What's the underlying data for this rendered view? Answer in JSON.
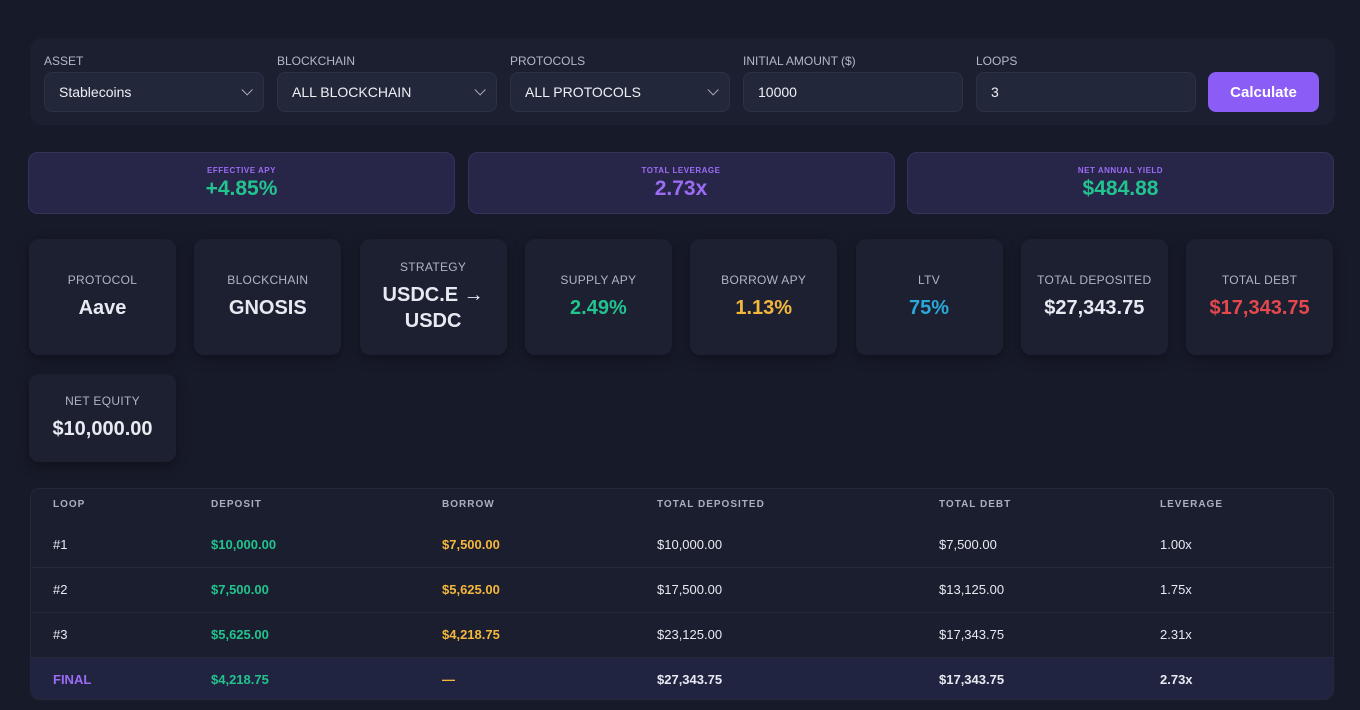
{
  "form": {
    "fields": [
      {
        "label": "ASSET",
        "value": "Stablecoins"
      },
      {
        "label": "BLOCKCHAIN",
        "value": "ALL BLOCKCHAIN"
      },
      {
        "label": "PROTOCOLS",
        "value": "ALL PROTOCOLS"
      },
      {
        "label": "INITIAL AMOUNT ($)",
        "value": "10000"
      },
      {
        "label": "LOOPS",
        "value": "3"
      }
    ],
    "button": "Calculate"
  },
  "summary": [
    {
      "label": "EFFECTIVE APY",
      "value": "+4.85%"
    },
    {
      "label": "TOTAL LEVERAGE",
      "value": "2.73x"
    },
    {
      "label": "NET ANNUAL YIELD",
      "value": "$484.88"
    }
  ],
  "stats": [
    {
      "label": "PROTOCOL",
      "value": "Aave"
    },
    {
      "label": "BLOCKCHAIN",
      "value": "GNOSIS"
    },
    {
      "label": "STRATEGY",
      "value": "USDC.E → USDC"
    },
    {
      "label": "SUPPLY APY",
      "value": "2.49%"
    },
    {
      "label": "BORROW APY",
      "value": "1.13%"
    },
    {
      "label": "LTV",
      "value": "75%"
    },
    {
      "label": "TOTAL DEPOSITED",
      "value": "$27,343.75"
    },
    {
      "label": "TOTAL DEBT",
      "value": "$17,343.75"
    },
    {
      "label": "NET EQUITY",
      "value": "$10,000.00"
    }
  ],
  "table": {
    "headers": [
      "LOOP",
      "DEPOSIT",
      "BORROW",
      "TOTAL DEPOSITED",
      "TOTAL DEBT",
      "LEVERAGE"
    ],
    "rows": [
      [
        "#1",
        "$10,000.00",
        "$7,500.00",
        "$10,000.00",
        "$7,500.00",
        "1.00x"
      ],
      [
        "#2",
        "$7,500.00",
        "$5,625.00",
        "$17,500.00",
        "$13,125.00",
        "1.75x"
      ],
      [
        "#3",
        "$5,625.00",
        "$4,218.75",
        "$23,125.00",
        "$17,343.75",
        "2.31x"
      ],
      [
        "FINAL",
        "$4,218.75",
        "—",
        "$27,343.75",
        "$17,343.75",
        "2.73x"
      ]
    ]
  }
}
